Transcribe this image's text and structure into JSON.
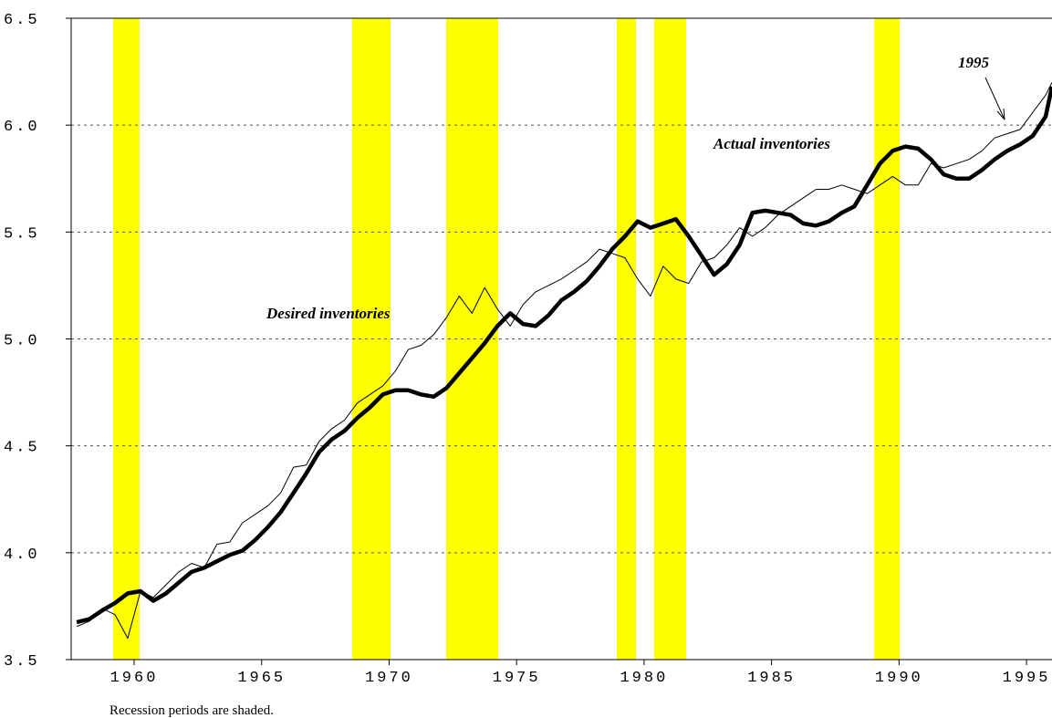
{
  "chart_data": {
    "type": "line",
    "annotations": [
      "Desired inventories",
      "Actual inventories",
      "1995"
    ],
    "note": "Recession periods are shaded.",
    "x": [
      1957.75,
      1958.25,
      1958.75,
      1959.25,
      1959.75,
      1960.25,
      1960.75,
      1961.25,
      1961.75,
      1962.25,
      1962.75,
      1963.25,
      1963.75,
      1964.25,
      1964.75,
      1965.25,
      1965.75,
      1966.25,
      1966.75,
      1967.25,
      1967.75,
      1968.25,
      1968.75,
      1969.25,
      1969.75,
      1970.25,
      1970.75,
      1971.25,
      1971.75,
      1972.25,
      1972.75,
      1973.25,
      1973.75,
      1974.25,
      1974.75,
      1975.25,
      1975.75,
      1976.25,
      1976.75,
      1977.25,
      1977.75,
      1978.25,
      1978.75,
      1979.25,
      1979.75,
      1980.25,
      1980.75,
      1981.25,
      1981.75,
      1982.25,
      1982.75,
      1983.25,
      1983.75,
      1984.25,
      1984.75,
      1985.25,
      1985.75,
      1986.25,
      1986.75,
      1987.25,
      1987.75,
      1988.25,
      1988.75,
      1989.25,
      1989.75,
      1990.25,
      1990.75,
      1991.25,
      1991.75,
      1992.25,
      1992.75,
      1993.25,
      1993.75,
      1994.25,
      1994.75,
      1995.25,
      1995.75,
      1996.0
    ],
    "series": [
      {
        "name": "Actual inventories",
        "color": "#000000",
        "width": 4.5,
        "values": [
          3.675,
          3.69,
          3.73,
          3.765,
          3.81,
          3.82,
          3.775,
          3.81,
          3.86,
          3.91,
          3.93,
          3.96,
          3.99,
          4.01,
          4.06,
          4.12,
          4.19,
          4.28,
          4.37,
          4.47,
          4.53,
          4.57,
          4.63,
          4.68,
          4.74,
          4.76,
          4.76,
          4.74,
          4.73,
          4.77,
          4.84,
          4.91,
          4.98,
          5.06,
          5.12,
          5.07,
          5.06,
          5.11,
          5.18,
          5.22,
          5.27,
          5.34,
          5.42,
          5.48,
          5.55,
          5.52,
          5.54,
          5.56,
          5.48,
          5.39,
          5.3,
          5.35,
          5.44,
          5.59,
          5.6,
          5.59,
          5.58,
          5.54,
          5.53,
          5.55,
          5.59,
          5.62,
          5.72,
          5.82,
          5.88,
          5.9,
          5.89,
          5.84,
          5.77,
          5.75,
          5.75,
          5.79,
          5.84,
          5.88,
          5.91,
          5.95,
          6.04,
          6.18
        ]
      },
      {
        "name": "Desired inventories",
        "color": "#000000",
        "width": 1,
        "values": [
          3.655,
          3.68,
          3.74,
          3.71,
          3.6,
          3.82,
          3.79,
          3.85,
          3.91,
          3.95,
          3.93,
          4.04,
          4.05,
          4.14,
          4.18,
          4.22,
          4.28,
          4.4,
          4.41,
          4.52,
          4.58,
          4.62,
          4.7,
          4.74,
          4.78,
          4.85,
          4.95,
          4.97,
          5.02,
          5.1,
          5.2,
          5.12,
          5.24,
          5.14,
          5.06,
          5.16,
          5.22,
          5.25,
          5.28,
          5.32,
          5.36,
          5.42,
          5.4,
          5.38,
          5.28,
          5.2,
          5.34,
          5.28,
          5.26,
          5.36,
          5.38,
          5.44,
          5.52,
          5.48,
          5.52,
          5.58,
          5.62,
          5.66,
          5.7,
          5.7,
          5.72,
          5.7,
          5.68,
          5.72,
          5.76,
          5.72,
          5.72,
          5.82,
          5.8,
          5.82,
          5.84,
          5.88,
          5.94,
          5.96,
          5.98,
          6.06,
          6.14,
          6.2
        ]
      }
    ],
    "shaded_periods": [
      [
        1959.18,
        1960.21
      ],
      [
        1968.55,
        1970.06
      ],
      [
        1972.24,
        1974.28
      ],
      [
        1978.93,
        1979.68
      ],
      [
        1980.4,
        1981.65
      ],
      [
        1989.03,
        1990.03
      ]
    ],
    "shade_color": "#ffff00",
    "xlim": [
      1957.53,
      1996.0
    ],
    "xticks": [
      1960,
      1965,
      1970,
      1975,
      1980,
      1985,
      1990,
      1995
    ],
    "ylim": [
      3.5,
      6.5
    ],
    "yticks": [
      3.5,
      {
        "value": 4,
        "label": "4.0"
      },
      4.5,
      {
        "value": 5,
        "label": "5.0"
      },
      5.5,
      {
        "value": 6,
        "label": "6.0"
      },
      6.5
    ],
    "grid": true
  }
}
